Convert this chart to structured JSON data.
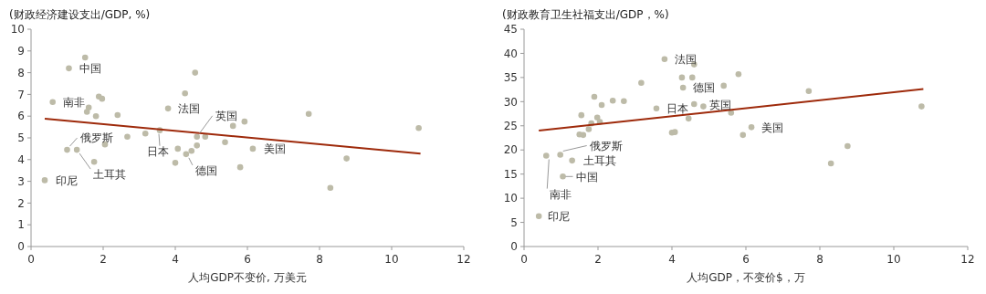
{
  "chart_data": [
    {
      "type": "scatter",
      "ylabel": "(财政经济建设支出/GDP, %)",
      "xlabel": "人均GDP不变价, 万美元",
      "xlim": [
        0,
        12
      ],
      "xticks": [
        0,
        2,
        4,
        6,
        8,
        10,
        12
      ],
      "ylim": [
        0,
        10
      ],
      "yticks": [
        0,
        1,
        2,
        3,
        4,
        5,
        6,
        7,
        8,
        9,
        10
      ],
      "grid": false,
      "series": [
        {
          "marker": "circle",
          "color": "#bdbba8",
          "x": [
            0.38,
            0.6,
            1.0,
            1.05,
            1.27,
            1.5,
            1.55,
            1.6,
            1.75,
            1.8,
            1.88,
            1.97,
            2.05,
            2.4,
            2.67,
            3.17,
            3.57,
            3.8,
            4.0,
            4.07,
            4.27,
            4.3,
            4.45,
            4.55,
            4.6,
            4.6,
            4.83,
            5.38,
            5.6,
            5.8,
            5.92,
            6.15,
            7.7,
            8.3,
            8.75,
            10.75
          ],
          "values": [
            3.05,
            6.65,
            4.45,
            8.2,
            4.45,
            8.7,
            6.2,
            6.4,
            3.9,
            6.0,
            6.9,
            6.8,
            4.7,
            6.05,
            5.05,
            5.2,
            5.35,
            6.35,
            3.85,
            4.5,
            7.05,
            4.25,
            4.4,
            8.0,
            4.65,
            5.05,
            5.05,
            4.8,
            5.55,
            3.65,
            5.75,
            4.5,
            6.1,
            2.7,
            4.05,
            5.45
          ]
        },
        {
          "type": "line",
          "color": "#9e2a0b",
          "x": [
            0.38,
            10.8
          ],
          "values": [
            5.88,
            4.28
          ]
        }
      ],
      "annotations": [
        {
          "text": "中国",
          "x": 1.05,
          "y": 8.2
        },
        {
          "text": "南非",
          "x": 0.6,
          "y": 6.65
        },
        {
          "text": "俄罗斯",
          "x": 1.0,
          "y": 4.45
        },
        {
          "text": "土耳其",
          "x": 1.27,
          "y": 4.45
        },
        {
          "text": "印尼",
          "x": 0.38,
          "y": 3.05
        },
        {
          "text": "日本",
          "x": 3.57,
          "y": 5.35
        },
        {
          "text": "法国",
          "x": 3.8,
          "y": 6.35
        },
        {
          "text": "英国",
          "x": 4.6,
          "y": 5.05
        },
        {
          "text": "德国",
          "x": 4.3,
          "y": 4.25
        },
        {
          "text": "美国",
          "x": 6.15,
          "y": 4.5
        }
      ]
    },
    {
      "type": "scatter",
      "ylabel": "(财政教育卫生社福支出/GDP，%)",
      "xlabel": "人均GDP，不变价$，万",
      "xlim": [
        0,
        12
      ],
      "xticks": [
        0,
        2,
        4,
        6,
        8,
        10,
        12
      ],
      "ylim": [
        0,
        45
      ],
      "yticks": [
        0,
        5,
        10,
        15,
        20,
        25,
        30,
        35,
        40,
        45
      ],
      "grid": false,
      "series": [
        {
          "marker": "circle",
          "color": "#bdbba8",
          "x": [
            0.4,
            0.6,
            0.98,
            1.05,
            1.3,
            1.5,
            1.55,
            1.6,
            1.75,
            1.82,
            1.9,
            1.98,
            2.05,
            2.1,
            2.4,
            2.7,
            3.17,
            3.58,
            3.8,
            4.0,
            4.08,
            4.27,
            4.3,
            4.45,
            4.55,
            4.6,
            4.6,
            4.85,
            5.4,
            5.6,
            5.8,
            5.92,
            6.15,
            7.7,
            8.3,
            8.75,
            10.75
          ],
          "values": [
            6.3,
            18.8,
            19.0,
            14.5,
            17.8,
            23.2,
            27.2,
            23.1,
            24.3,
            25.5,
            31.0,
            26.7,
            25.8,
            29.3,
            30.2,
            30.1,
            33.9,
            28.6,
            38.8,
            23.6,
            23.7,
            35.0,
            32.9,
            26.5,
            35.0,
            37.7,
            29.5,
            29.0,
            33.3,
            27.7,
            35.7,
            23.1,
            24.7,
            32.2,
            17.2,
            20.8,
            29.0
          ]
        },
        {
          "type": "line",
          "color": "#9e2a0b",
          "x": [
            0.4,
            10.8
          ],
          "values": [
            24.0,
            32.6
          ]
        }
      ],
      "annotations": [
        {
          "text": "法国",
          "x": 3.8,
          "y": 38.8
        },
        {
          "text": "德国",
          "x": 4.3,
          "y": 32.9
        },
        {
          "text": "英国",
          "x": 4.85,
          "y": 29.0
        },
        {
          "text": "日本",
          "x": 3.58,
          "y": 28.6
        },
        {
          "text": "美国",
          "x": 6.15,
          "y": 24.7
        },
        {
          "text": "俄罗斯",
          "x": 0.98,
          "y": 19.0
        },
        {
          "text": "土耳其",
          "x": 1.3,
          "y": 17.8
        },
        {
          "text": "中国",
          "x": 1.05,
          "y": 14.5
        },
        {
          "text": "南非",
          "x": 0.6,
          "y": 18.8
        },
        {
          "text": "印尼",
          "x": 0.4,
          "y": 6.3
        }
      ]
    }
  ]
}
